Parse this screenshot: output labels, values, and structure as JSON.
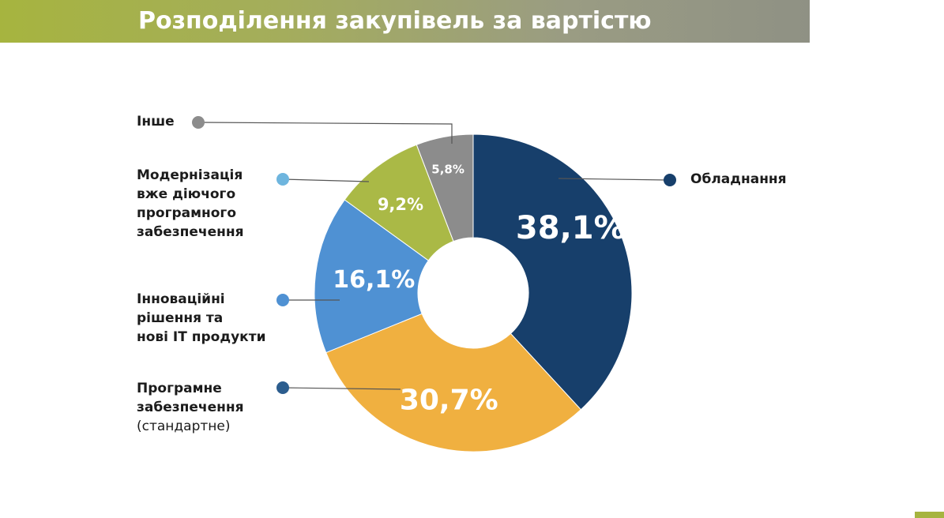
{
  "banner": {
    "title": "Розподілення закупівель за вартістю"
  },
  "colors": {
    "accent": "#a6b43f"
  },
  "chart_data": {
    "type": "pie",
    "title": "Розподілення закупівель за вартістю",
    "donut": true,
    "series": [
      {
        "name": "Обладнання",
        "value": 38.1,
        "label": "38,1%",
        "color": "#173f6b",
        "marker_color": "#173f6b"
      },
      {
        "name": "Програмне забезпечення (стандартне)",
        "value": 30.7,
        "label": "30,7%",
        "color": "#f0b040",
        "marker_color": "#2c5d8e"
      },
      {
        "name": "Інноваційні рішення та нові ІТ продукти",
        "value": 16.1,
        "label": "16,1%",
        "color": "#4f91d3",
        "marker_color": "#4f91d3"
      },
      {
        "name": "Модернізація вже діючого програмного забезпечення",
        "value": 9.2,
        "label": "9,2%",
        "color": "#aab946",
        "marker_color": "#6eb5de"
      },
      {
        "name": "Інше",
        "value": 5.8,
        "label": "5,8%",
        "color": "#8c8c8c",
        "marker_color": "#8c8c8c"
      }
    ],
    "legend_text": {
      "obladnannya": "Обладнання",
      "prohramne_1": "Програмне",
      "prohramne_2": "забезпечення",
      "prohramne_3": "(стандартне)",
      "innovatsiini_1": "Інноваційні",
      "innovatsiini_2": "рішення та",
      "innovatsiini_3": "нові ІТ продукти",
      "modernizatsiya_1": "Модернізація",
      "modernizatsiya_2": "вже діючого",
      "modernizatsiya_3": "програмного",
      "modernizatsiya_4": "забезпечення",
      "inshe": "Інше"
    },
    "legend": "callouts"
  }
}
